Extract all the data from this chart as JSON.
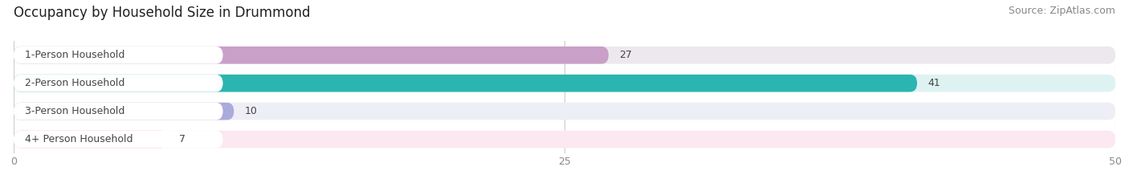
{
  "title": "Occupancy by Household Size in Drummond",
  "source": "Source: ZipAtlas.com",
  "categories": [
    "1-Person Household",
    "2-Person Household",
    "3-Person Household",
    "4+ Person Household"
  ],
  "values": [
    27,
    41,
    10,
    7
  ],
  "bar_colors": [
    "#c9a0c8",
    "#2ab5b0",
    "#aaaadd",
    "#f4a8c0"
  ],
  "bar_bg_colors": [
    "#ede8ed",
    "#dff2f2",
    "#eeeef6",
    "#fce8f0"
  ],
  "label_bg_color": "#ffffff",
  "xlim": [
    0,
    50
  ],
  "xticks": [
    0,
    25,
    50
  ],
  "title_fontsize": 12,
  "source_fontsize": 9,
  "label_fontsize": 9,
  "value_fontsize": 9,
  "background_color": "#ffffff",
  "grid_color": "#cccccc",
  "text_color": "#444444",
  "tick_color": "#888888"
}
